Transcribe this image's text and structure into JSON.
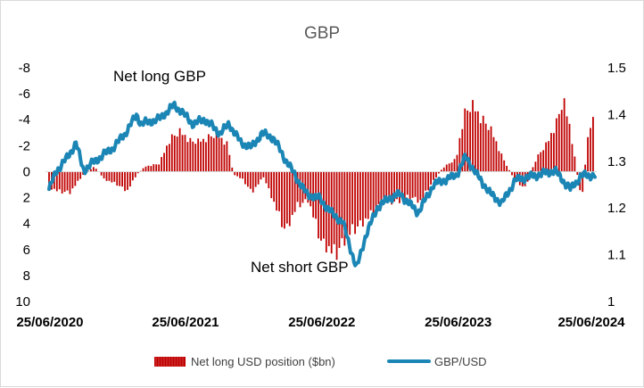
{
  "chart_data": {
    "type": "bar+line",
    "title": "GBP",
    "x_tick_labels": [
      "25/06/2020",
      "25/06/2021",
      "25/06/2022",
      "25/06/2023",
      "25/06/2024"
    ],
    "left_axis": {
      "inverted": true,
      "ylim": [
        -8,
        10
      ],
      "tick_labels": [
        "-8",
        "-6",
        "-4",
        "-2",
        "0",
        "2",
        "4",
        "6",
        "8",
        "10"
      ]
    },
    "right_axis": {
      "ylim": [
        1.0,
        1.5
      ],
      "tick_labels": [
        "1.5",
        "1.4",
        "1.3",
        "1.2",
        "1.1",
        "1"
      ]
    },
    "annotations": [
      "Net long GBP",
      "Net short GBP"
    ],
    "legend_position": "bottom",
    "grid": false,
    "colors": {
      "bars": "#c00000",
      "line": "#1b86b5",
      "axis": "#d9d9d9"
    },
    "series": [
      {
        "name": "Net long USD position ($bn)",
        "type": "bar",
        "axis": "left",
        "anchors": [
          [
            "2020-06-25",
            1.2
          ],
          [
            "2020-07-20",
            1.5
          ],
          [
            "2020-08-20",
            1.6
          ],
          [
            "2020-09-25",
            0.2
          ],
          [
            "2020-10-25",
            -0.4
          ],
          [
            "2020-11-20",
            0.6
          ],
          [
            "2020-12-20",
            0.9
          ],
          [
            "2021-01-20",
            1.5
          ],
          [
            "2021-02-15",
            0.2
          ],
          [
            "2021-03-10",
            -0.4
          ],
          [
            "2021-04-15",
            -0.6
          ],
          [
            "2021-05-15",
            -2.5
          ],
          [
            "2021-06-10",
            -3.1
          ],
          [
            "2021-07-10",
            -2.3
          ],
          [
            "2021-08-10",
            -2.4
          ],
          [
            "2021-09-15",
            -2.9
          ],
          [
            "2021-10-15",
            -2.1
          ],
          [
            "2021-11-01",
            0.2
          ],
          [
            "2021-11-25",
            0.6
          ],
          [
            "2021-12-20",
            1.6
          ],
          [
            "2022-01-20",
            0.4
          ],
          [
            "2022-02-20",
            2.6
          ],
          [
            "2022-03-20",
            4.6
          ],
          [
            "2022-04-20",
            2.6
          ],
          [
            "2022-05-20",
            2.2
          ],
          [
            "2022-06-25",
            5.5
          ],
          [
            "2022-08-01",
            6.3
          ],
          [
            "2022-09-10",
            4.6
          ],
          [
            "2022-10-10",
            4.0
          ],
          [
            "2022-11-10",
            3.1
          ],
          [
            "2022-12-10",
            2.3
          ],
          [
            "2023-01-15",
            2.3
          ],
          [
            "2023-02-15",
            1.9
          ],
          [
            "2023-03-15",
            2.3
          ],
          [
            "2023-04-15",
            0.9
          ],
          [
            "2023-05-15",
            -0.3
          ],
          [
            "2023-06-20",
            -1.0
          ],
          [
            "2023-07-10",
            -4.3
          ],
          [
            "2023-08-01",
            -5.2
          ],
          [
            "2023-08-25",
            -4.1
          ],
          [
            "2023-09-20",
            -3.3
          ],
          [
            "2023-10-20",
            -1.2
          ],
          [
            "2023-11-20",
            0.5
          ],
          [
            "2023-12-20",
            1.3
          ],
          [
            "2024-01-20",
            -1.0
          ],
          [
            "2024-02-20",
            -2.3
          ],
          [
            "2024-03-15",
            -3.8
          ],
          [
            "2024-04-01",
            -5.6
          ],
          [
            "2024-04-20",
            -3.3
          ],
          [
            "2024-05-20",
            2.3
          ],
          [
            "2024-06-10",
            -3.7
          ],
          [
            "2024-06-25",
            -3.9
          ]
        ]
      },
      {
        "name": "GBP/USD",
        "type": "line",
        "axis": "right",
        "anchors": [
          [
            "2020-06-25",
            1.24
          ],
          [
            "2020-07-15",
            1.28
          ],
          [
            "2020-08-15",
            1.31
          ],
          [
            "2020-09-05",
            1.34
          ],
          [
            "2020-09-25",
            1.28
          ],
          [
            "2020-10-25",
            1.3
          ],
          [
            "2020-12-15",
            1.33
          ],
          [
            "2021-01-15",
            1.36
          ],
          [
            "2021-02-15",
            1.4
          ],
          [
            "2021-02-25",
            1.38
          ],
          [
            "2021-04-15",
            1.39
          ],
          [
            "2021-05-25",
            1.42
          ],
          [
            "2021-06-10",
            1.41
          ],
          [
            "2021-07-15",
            1.38
          ],
          [
            "2021-08-15",
            1.39
          ],
          [
            "2021-09-25",
            1.36
          ],
          [
            "2021-10-20",
            1.38
          ],
          [
            "2021-11-20",
            1.34
          ],
          [
            "2021-12-20",
            1.33
          ],
          [
            "2022-01-15",
            1.36
          ],
          [
            "2022-02-15",
            1.35
          ],
          [
            "2022-03-15",
            1.31
          ],
          [
            "2022-05-15",
            1.23
          ],
          [
            "2022-06-20",
            1.22
          ],
          [
            "2022-07-20",
            1.19
          ],
          [
            "2022-08-20",
            1.17
          ],
          [
            "2022-09-26",
            1.07
          ],
          [
            "2022-10-20",
            1.14
          ],
          [
            "2022-11-20",
            1.2
          ],
          [
            "2022-12-20",
            1.22
          ],
          [
            "2023-01-20",
            1.23
          ],
          [
            "2023-03-10",
            1.19
          ],
          [
            "2023-04-20",
            1.25
          ],
          [
            "2023-06-20",
            1.27
          ],
          [
            "2023-07-15",
            1.31
          ],
          [
            "2023-08-15",
            1.27
          ],
          [
            "2023-09-20",
            1.23
          ],
          [
            "2023-10-20",
            1.21
          ],
          [
            "2023-11-25",
            1.26
          ],
          [
            "2024-01-20",
            1.27
          ],
          [
            "2024-03-10",
            1.28
          ],
          [
            "2024-04-20",
            1.24
          ],
          [
            "2024-05-20",
            1.27
          ],
          [
            "2024-06-25",
            1.27
          ]
        ]
      }
    ]
  }
}
